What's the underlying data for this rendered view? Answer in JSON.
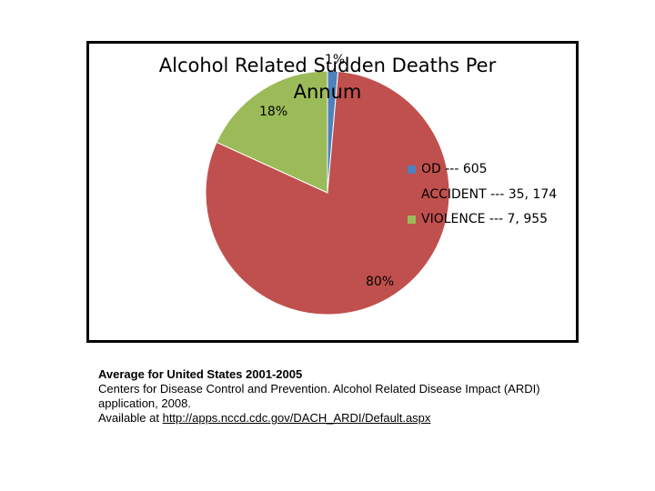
{
  "chart_data": {
    "type": "pie",
    "title": "Alcohol Related Sudden Deaths Per Annum",
    "slices": [
      {
        "name": "OD",
        "legend": "OD --- 605",
        "value": 605,
        "label": "1%",
        "color": "#4f81bd"
      },
      {
        "name": "ACCIDENT",
        "legend": "ACCIDENT --- 35, 174",
        "value": 35174,
        "label": "80%",
        "color": "#c0504d"
      },
      {
        "name": "VIOLENCE",
        "legend": "VIOLENCE --- 7, 955",
        "value": 7955,
        "label": "18%",
        "color": "#9bbb59"
      }
    ],
    "legend_position": "right"
  },
  "caption": {
    "line1": "Average for United States 2001-2005",
    "line2": "Centers for Disease Control and Prevention. Alcohol Related Disease Impact (ARDI)",
    "line3": "application, 2008.",
    "line4_prefix": "Available at ",
    "link_text": "http://apps.nccd.cdc.gov/DACH_ARDI/Default.aspx"
  }
}
